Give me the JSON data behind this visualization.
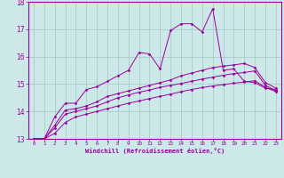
{
  "bg_color": "#cce8e8",
  "grid_color": "#aacccc",
  "line_color": "#990099",
  "xlim": [
    -0.5,
    23.5
  ],
  "ylim": [
    13,
    18
  ],
  "x_ticks": [
    0,
    1,
    2,
    3,
    4,
    5,
    6,
    7,
    8,
    9,
    10,
    11,
    12,
    13,
    14,
    15,
    16,
    17,
    18,
    19,
    20,
    21,
    22,
    23
  ],
  "y_ticks": [
    13,
    14,
    15,
    16,
    17,
    18
  ],
  "xlabel": "Windchill (Refroidissement éolien,°C)",
  "line1_x": [
    0,
    1,
    2,
    3,
    4,
    5,
    6,
    7,
    8,
    9,
    10,
    11,
    12,
    13,
    14,
    15,
    16,
    17,
    18,
    19,
    20,
    21,
    22,
    23
  ],
  "line1_y": [
    13.0,
    13.0,
    13.8,
    14.3,
    14.3,
    14.8,
    14.9,
    15.1,
    15.3,
    15.5,
    16.15,
    16.1,
    15.55,
    16.95,
    17.2,
    17.2,
    16.9,
    17.75,
    15.5,
    15.55,
    15.1,
    15.05,
    14.85,
    14.8
  ],
  "line2_x": [
    0,
    1,
    2,
    3,
    4,
    5,
    6,
    7,
    8,
    9,
    10,
    11,
    12,
    13,
    14,
    15,
    16,
    17,
    18,
    19,
    20,
    21,
    22,
    23
  ],
  "line2_y": [
    13.0,
    13.0,
    13.5,
    14.05,
    14.1,
    14.2,
    14.35,
    14.55,
    14.65,
    14.75,
    14.85,
    14.95,
    15.05,
    15.15,
    15.3,
    15.4,
    15.5,
    15.6,
    15.65,
    15.7,
    15.75,
    15.6,
    15.05,
    14.85
  ],
  "line3_x": [
    0,
    1,
    2,
    3,
    4,
    5,
    6,
    7,
    8,
    9,
    10,
    11,
    12,
    13,
    14,
    15,
    16,
    17,
    18,
    19,
    20,
    21,
    22,
    23
  ],
  "line3_y": [
    13.0,
    13.0,
    13.4,
    13.9,
    14.0,
    14.1,
    14.2,
    14.35,
    14.5,
    14.6,
    14.7,
    14.78,
    14.88,
    14.95,
    15.02,
    15.1,
    15.18,
    15.25,
    15.32,
    15.38,
    15.42,
    15.48,
    14.95,
    14.75
  ],
  "line4_x": [
    0,
    1,
    2,
    3,
    4,
    5,
    6,
    7,
    8,
    9,
    10,
    11,
    12,
    13,
    14,
    15,
    16,
    17,
    18,
    19,
    20,
    21,
    22,
    23
  ],
  "line4_y": [
    13.0,
    13.0,
    13.2,
    13.6,
    13.8,
    13.9,
    14.0,
    14.1,
    14.2,
    14.3,
    14.38,
    14.47,
    14.55,
    14.63,
    14.72,
    14.8,
    14.87,
    14.93,
    14.98,
    15.03,
    15.07,
    15.12,
    14.88,
    14.72
  ]
}
